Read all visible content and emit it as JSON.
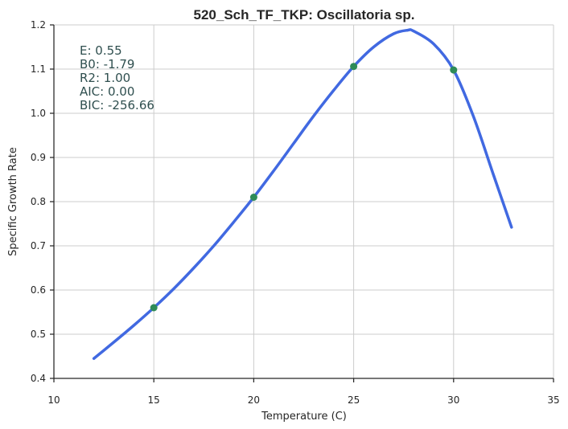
{
  "chart_data": {
    "type": "line",
    "title": "520_Sch_TF_TKP: Oscillatoria sp.",
    "xlabel": "Temperature (C)",
    "ylabel": "Specific Growth Rate",
    "xlim": [
      10,
      35
    ],
    "ylim": [
      0.4,
      1.2
    ],
    "x_ticks": [
      10,
      15,
      20,
      25,
      30,
      35
    ],
    "y_ticks": [
      0.4,
      0.5,
      0.6,
      0.7,
      0.8,
      0.9,
      1.0,
      1.1,
      1.2
    ],
    "grid": true,
    "stats": [
      {
        "label": "E:",
        "value": "0.55"
      },
      {
        "label": "B0:",
        "value": "-1.79"
      },
      {
        "label": "R2:",
        "value": "1.00"
      },
      {
        "label": "AIC:",
        "value": "0.00"
      },
      {
        "label": "BIC:",
        "value": "-256.66"
      }
    ],
    "series": [
      {
        "kind": "fitted-curve",
        "color": "#4169e1",
        "x": [
          12,
          13,
          14,
          15,
          16,
          17,
          18,
          19,
          20,
          21,
          22,
          23,
          24,
          25,
          26,
          27,
          27.7,
          28,
          29,
          30,
          31,
          32,
          32.9
        ],
        "y": [
          0.445,
          0.482,
          0.52,
          0.56,
          0.603,
          0.65,
          0.7,
          0.754,
          0.81,
          0.87,
          0.932,
          0.994,
          1.052,
          1.106,
          1.15,
          1.18,
          1.188,
          1.186,
          1.157,
          1.098,
          0.992,
          0.86,
          0.742
        ]
      },
      {
        "kind": "observed-points",
        "color": "#2e8b57",
        "x": [
          15,
          20,
          25,
          30
        ],
        "y": [
          0.56,
          0.81,
          1.106,
          1.098
        ]
      }
    ]
  }
}
